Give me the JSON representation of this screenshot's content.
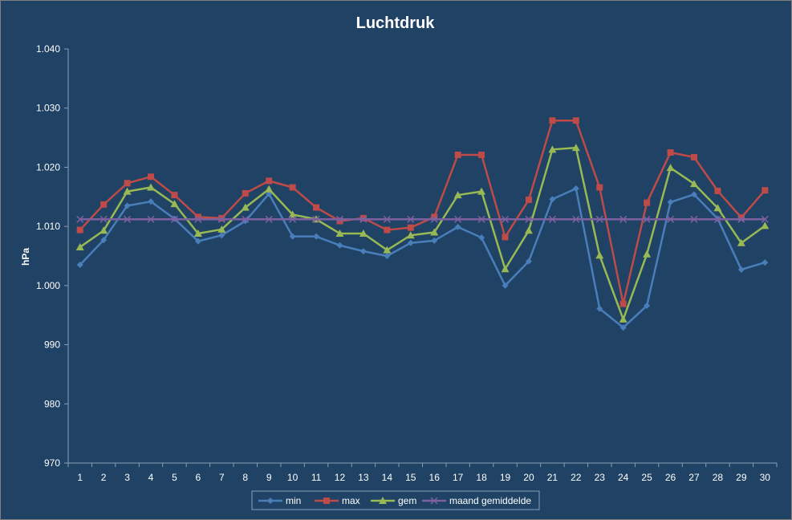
{
  "chart_data": {
    "type": "line",
    "title": "Luchtdruk",
    "xlabel": "",
    "ylabel": "hPa",
    "categories": [
      "1",
      "2",
      "3",
      "4",
      "5",
      "6",
      "7",
      "8",
      "9",
      "10",
      "11",
      "12",
      "13",
      "14",
      "15",
      "16",
      "17",
      "18",
      "19",
      "20",
      "21",
      "22",
      "23",
      "24",
      "25",
      "26",
      "27",
      "28",
      "29",
      "30"
    ],
    "yticks": [
      "970",
      "980",
      "990",
      "1.000",
      "1.010",
      "1.020",
      "1.030",
      "1.040"
    ],
    "ylim": [
      970,
      1040
    ],
    "grid": false,
    "legend": "bottom",
    "series": [
      {
        "name": "min",
        "color": "#4a7ebb",
        "marker": "diamond",
        "values": [
          1003.5,
          1007.7,
          1013.5,
          1014.2,
          1011.3,
          1007.5,
          1008.5,
          1010.9,
          1015.5,
          1008.3,
          1008.3,
          1006.8,
          1005.8,
          1005.0,
          1007.2,
          1007.6,
          1009.9,
          1008.1,
          1000.0,
          1004.1,
          1014.6,
          1016.4,
          996.1,
          992.9,
          996.6,
          1014.1,
          1015.4,
          1011.3,
          1002.7,
          1003.9
        ]
      },
      {
        "name": "max",
        "color": "#be4b48",
        "marker": "square",
        "values": [
          1009.4,
          1013.7,
          1017.3,
          1018.4,
          1015.3,
          1011.6,
          1011.4,
          1015.6,
          1017.7,
          1016.6,
          1013.2,
          1010.9,
          1011.4,
          1009.4,
          1009.8,
          1011.6,
          1022.1,
          1022.1,
          1008.2,
          1014.5,
          1027.9,
          1027.9,
          1016.6,
          996.9,
          1014.0,
          1022.5,
          1021.7,
          1016.0,
          1011.5,
          1016.1
        ]
      },
      {
        "name": "gem",
        "color": "#98b954",
        "marker": "triangle",
        "values": [
          1006.5,
          1009.3,
          1015.9,
          1016.6,
          1013.8,
          1008.8,
          1009.5,
          1013.2,
          1016.3,
          1012.0,
          1011.2,
          1008.8,
          1008.8,
          1006.0,
          1008.5,
          1009.0,
          1015.3,
          1015.9,
          1002.8,
          1009.3,
          1023.0,
          1023.3,
          1005.1,
          994.3,
          1005.3,
          1019.9,
          1017.2,
          1013.1,
          1007.2,
          1010.1
        ]
      },
      {
        "name": "maand gemiddelde",
        "color": "#7d60a0",
        "marker": "x",
        "values": [
          1011.2,
          1011.2,
          1011.2,
          1011.2,
          1011.2,
          1011.2,
          1011.2,
          1011.2,
          1011.2,
          1011.2,
          1011.2,
          1011.2,
          1011.2,
          1011.2,
          1011.2,
          1011.2,
          1011.2,
          1011.2,
          1011.2,
          1011.2,
          1011.2,
          1011.2,
          1011.2,
          1011.2,
          1011.2,
          1011.2,
          1011.2,
          1011.2,
          1011.2,
          1011.2
        ]
      }
    ]
  }
}
